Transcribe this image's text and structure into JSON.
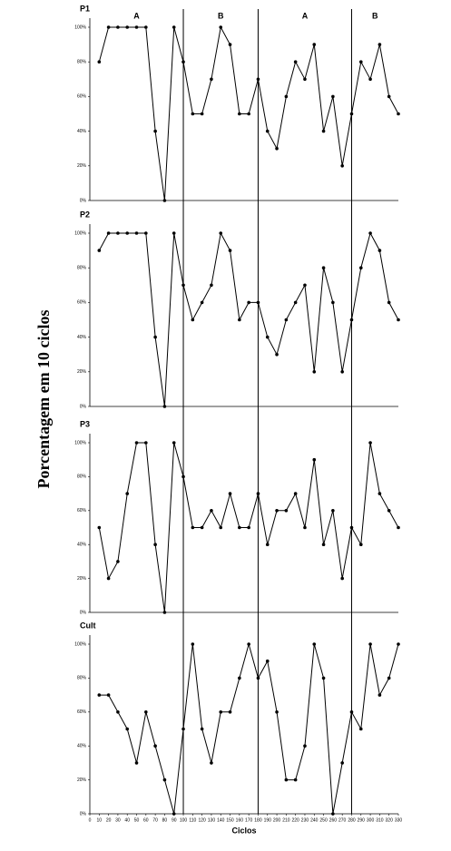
{
  "y_label": "Porcentagem em 10 ciclos",
  "chart_data": [
    {
      "type": "line",
      "title": "P1",
      "color": "#000000",
      "phase_labels": [
        "A",
        "B",
        "A",
        "B"
      ],
      "phase_bounds": [
        100,
        180,
        280
      ],
      "x": [
        10,
        20,
        30,
        40,
        50,
        60,
        70,
        80,
        90,
        100,
        110,
        120,
        130,
        140,
        150,
        160,
        170,
        180,
        190,
        200,
        210,
        220,
        230,
        240,
        250,
        260,
        270,
        280,
        290,
        300,
        310,
        320,
        330
      ],
      "values": [
        80,
        100,
        100,
        100,
        100,
        100,
        40,
        0,
        100,
        80,
        50,
        50,
        70,
        100,
        90,
        50,
        50,
        70,
        40,
        30,
        60,
        80,
        70,
        90,
        40,
        60,
        20,
        50,
        80,
        70,
        90,
        60,
        50
      ],
      "xlim": [
        0,
        330
      ],
      "ylim": [
        0,
        100
      ],
      "yticks": [
        {
          "value": 0,
          "label": "0%"
        },
        {
          "value": 20,
          "label": "20%"
        },
        {
          "value": 40,
          "label": "40%"
        },
        {
          "value": 60,
          "label": "60%"
        },
        {
          "value": 80,
          "label": "80%"
        },
        {
          "value": 100,
          "label": "100%"
        }
      ]
    },
    {
      "type": "line",
      "title": "P2",
      "color": "#000000",
      "x": [
        10,
        20,
        30,
        40,
        50,
        60,
        70,
        80,
        90,
        100,
        110,
        120,
        130,
        140,
        150,
        160,
        170,
        180,
        190,
        200,
        210,
        220,
        230,
        240,
        250,
        260,
        270,
        280,
        290,
        300,
        310,
        320,
        330
      ],
      "values": [
        90,
        100,
        100,
        100,
        100,
        100,
        40,
        0,
        100,
        70,
        50,
        60,
        70,
        100,
        90,
        50,
        60,
        60,
        40,
        30,
        50,
        60,
        70,
        20,
        80,
        60,
        20,
        50,
        80,
        100,
        90,
        60,
        50
      ],
      "xlim": [
        0,
        330
      ],
      "ylim": [
        0,
        100
      ],
      "yticks": [
        {
          "value": 0,
          "label": "0%"
        },
        {
          "value": 20,
          "label": "20%"
        },
        {
          "value": 40,
          "label": "40%"
        },
        {
          "value": 60,
          "label": "60%"
        },
        {
          "value": 80,
          "label": "80%"
        },
        {
          "value": 100,
          "label": "100%"
        }
      ]
    },
    {
      "type": "line",
      "title": "P3",
      "color": "#000000",
      "x": [
        10,
        20,
        30,
        40,
        50,
        60,
        70,
        80,
        90,
        100,
        110,
        120,
        130,
        140,
        150,
        160,
        170,
        180,
        190,
        200,
        210,
        220,
        230,
        240,
        250,
        260,
        270,
        280,
        290,
        300,
        310,
        320,
        330
      ],
      "values": [
        50,
        20,
        30,
        70,
        100,
        100,
        40,
        0,
        100,
        80,
        50,
        50,
        60,
        50,
        70,
        50,
        50,
        70,
        40,
        60,
        60,
        70,
        50,
        90,
        40,
        60,
        20,
        50,
        40,
        100,
        70,
        60,
        50
      ],
      "xlim": [
        0,
        330
      ],
      "ylim": [
        0,
        100
      ],
      "yticks": [
        {
          "value": 0,
          "label": "0%"
        },
        {
          "value": 20,
          "label": "20%"
        },
        {
          "value": 40,
          "label": "40%"
        },
        {
          "value": 60,
          "label": "60%"
        },
        {
          "value": 80,
          "label": "80%"
        },
        {
          "value": 100,
          "label": "100%"
        }
      ]
    },
    {
      "type": "line",
      "title": "Cult",
      "color": "#000000",
      "xlabel": "Ciclos",
      "x": [
        10,
        20,
        30,
        40,
        50,
        60,
        70,
        80,
        90,
        100,
        110,
        120,
        130,
        140,
        150,
        160,
        170,
        180,
        190,
        200,
        210,
        220,
        230,
        240,
        250,
        260,
        270,
        280,
        290,
        300,
        310,
        320,
        330
      ],
      "values": [
        70,
        70,
        60,
        50,
        30,
        60,
        40,
        20,
        0,
        50,
        100,
        50,
        30,
        60,
        60,
        80,
        100,
        80,
        90,
        60,
        20,
        20,
        40,
        100,
        80,
        0,
        30,
        60,
        50,
        100,
        70,
        80,
        100
      ],
      "xlim": [
        0,
        330
      ],
      "ylim": [
        0,
        100
      ],
      "xticks": [
        0,
        10,
        20,
        30,
        40,
        50,
        60,
        70,
        80,
        90,
        100,
        110,
        120,
        130,
        140,
        150,
        160,
        170,
        180,
        190,
        200,
        210,
        220,
        230,
        240,
        250,
        260,
        270,
        280,
        290,
        300,
        310,
        320,
        330
      ],
      "yticks": [
        {
          "value": 0,
          "label": "0%"
        },
        {
          "value": 20,
          "label": "20%"
        },
        {
          "value": 40,
          "label": "40%"
        },
        {
          "value": 60,
          "label": "60%"
        },
        {
          "value": 80,
          "label": "80%"
        },
        {
          "value": 100,
          "label": "100%"
        }
      ]
    }
  ]
}
